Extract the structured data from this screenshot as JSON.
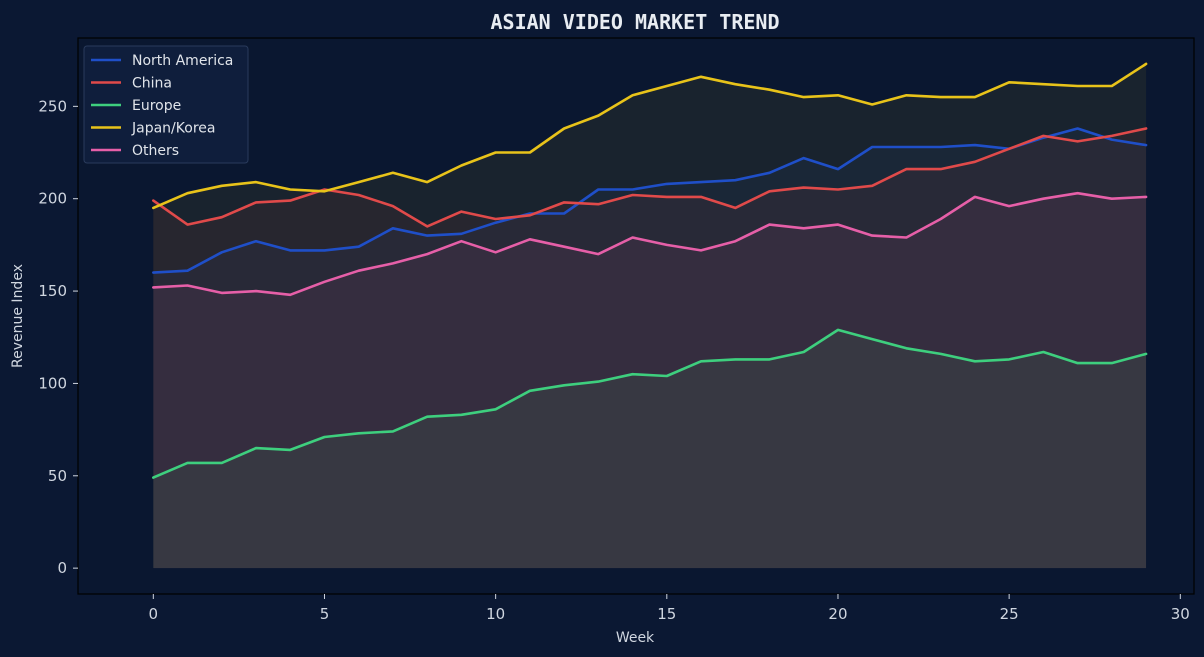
{
  "chart_data": {
    "type": "area",
    "title": "ASIAN VIDEO MARKET TREND",
    "xlabel": "Week",
    "ylabel": "Revenue Index",
    "xlim": [
      -2.2,
      30.4
    ],
    "ylim": [
      -14,
      287
    ],
    "xticks": [
      0,
      5,
      10,
      15,
      20,
      25,
      30
    ],
    "yticks": [
      0,
      50,
      100,
      150,
      200,
      250
    ],
    "grid": false,
    "legend": "top-left",
    "x": [
      0,
      1,
      2,
      3,
      4,
      5,
      6,
      7,
      8,
      9,
      10,
      11,
      12,
      13,
      14,
      15,
      16,
      17,
      18,
      19,
      20,
      21,
      22,
      23,
      24,
      25,
      26,
      27,
      28,
      29
    ],
    "series": [
      {
        "name": "North America",
        "color": "#1f4fc8",
        "values": [
          160,
          161,
          171,
          177,
          172,
          172,
          174,
          184,
          180,
          181,
          187,
          192,
          192,
          205,
          205,
          208,
          209,
          210,
          214,
          222,
          216,
          228,
          228,
          228,
          229,
          227,
          233,
          238,
          232,
          229
        ]
      },
      {
        "name": "China",
        "color": "#e04a4a",
        "values": [
          199,
          186,
          190,
          198,
          199,
          205,
          202,
          196,
          185,
          193,
          189,
          191,
          198,
          197,
          202,
          201,
          201,
          195,
          204,
          206,
          205,
          207,
          216,
          216,
          220,
          227,
          234,
          231,
          234,
          238
        ]
      },
      {
        "name": "Europe",
        "color": "#3ecf7e",
        "values": [
          49,
          57,
          57,
          65,
          64,
          71,
          73,
          74,
          82,
          83,
          86,
          96,
          99,
          101,
          105,
          104,
          112,
          113,
          113,
          117,
          129,
          124,
          119,
          116,
          112,
          113,
          117,
          111,
          111,
          116
        ]
      },
      {
        "name": "Japan/Korea",
        "color": "#e8c31a",
        "values": [
          195,
          203,
          207,
          209,
          205,
          204,
          209,
          214,
          209,
          218,
          225,
          225,
          238,
          245,
          256,
          261,
          266,
          262,
          259,
          255,
          256,
          251,
          256,
          255,
          255,
          263,
          262,
          261,
          261,
          273
        ]
      },
      {
        "name": "Others",
        "color": "#e65fa8",
        "values": [
          152,
          153,
          149,
          150,
          148,
          155,
          161,
          165,
          170,
          177,
          171,
          178,
          174,
          170,
          179,
          175,
          172,
          177,
          186,
          184,
          186,
          180,
          179,
          189,
          201,
          196,
          200,
          203,
          200,
          201
        ]
      }
    ]
  }
}
